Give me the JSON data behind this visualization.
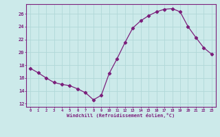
{
  "x": [
    0,
    1,
    2,
    3,
    4,
    5,
    6,
    7,
    8,
    9,
    10,
    11,
    12,
    13,
    14,
    15,
    16,
    17,
    18,
    19,
    20,
    21,
    22,
    23
  ],
  "y": [
    17.5,
    16.8,
    16.0,
    15.3,
    15.0,
    14.8,
    14.3,
    13.7,
    12.6,
    13.3,
    16.7,
    19.0,
    21.5,
    23.8,
    24.9,
    25.7,
    26.3,
    26.7,
    26.8,
    26.3,
    24.0,
    22.3,
    20.7,
    19.7
  ],
  "line_color": "#7B1F7B",
  "marker": "D",
  "marker_size": 2.2,
  "bg_color": "#cceaea",
  "grid_color": "#b0d8d8",
  "xlabel": "Windchill (Refroidissement éolien,°C)",
  "xlabel_color": "#7B1F7B",
  "ylabel_ticks": [
    12,
    14,
    16,
    18,
    20,
    22,
    24,
    26
  ],
  "ylim": [
    11.5,
    27.5
  ],
  "xlim": [
    -0.5,
    23.5
  ],
  "tick_color": "#7B1F7B",
  "spine_color": "#7B1F7B"
}
